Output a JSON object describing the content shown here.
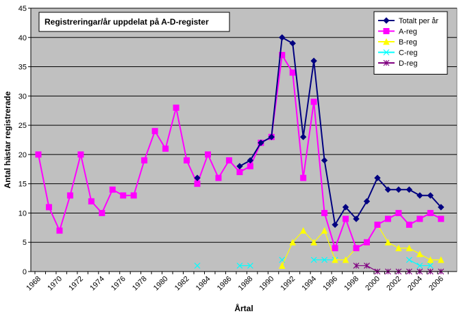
{
  "chart_data": {
    "type": "line",
    "title": "Registreringar/år uppdelat på A-D-register",
    "xlabel": "Årtal",
    "ylabel": "Antal hästar registrerade",
    "ylim": [
      0,
      45
    ],
    "yticks": [
      0,
      5,
      10,
      15,
      20,
      25,
      30,
      35,
      40,
      45
    ],
    "xticks": [
      "1968",
      "1970",
      "1972",
      "1974",
      "1976",
      "1978",
      "1980",
      "1982",
      "1984",
      "1986",
      "1988",
      "1990",
      "1992",
      "1994",
      "1996",
      "1998",
      "2000",
      "2002",
      "2004",
      "2006"
    ],
    "x": [
      1968,
      1969,
      1970,
      1971,
      1972,
      1973,
      1974,
      1975,
      1976,
      1977,
      1978,
      1979,
      1980,
      1981,
      1982,
      1983,
      1984,
      1985,
      1986,
      1987,
      1988,
      1989,
      1990,
      1991,
      1992,
      1993,
      1994,
      1995,
      1996,
      1997,
      1998,
      1999,
      2000,
      2001,
      2002,
      2003,
      2004,
      2005,
      2006,
      2007
    ],
    "grid": "horizontal",
    "legend_position": "top-right",
    "plot_background": "#c0c0c0",
    "series": [
      {
        "name": "Totalt  per år",
        "color": "#000080",
        "marker": "diamond",
        "values": [
          null,
          null,
          null,
          null,
          null,
          null,
          null,
          null,
          null,
          null,
          null,
          null,
          null,
          null,
          null,
          16,
          null,
          null,
          null,
          18,
          19,
          22,
          23,
          40,
          39,
          23,
          36,
          19,
          8,
          11,
          9,
          12,
          16,
          14,
          14,
          14,
          13,
          13,
          11,
          null
        ]
      },
      {
        "name": "A-reg",
        "color": "#ff00ff",
        "marker": "square",
        "values": [
          20,
          11,
          7,
          13,
          20,
          12,
          10,
          14,
          13,
          13,
          19,
          24,
          21,
          28,
          19,
          15,
          20,
          16,
          19,
          17,
          18,
          22,
          23,
          37,
          34,
          16,
          29,
          10,
          4,
          9,
          4,
          5,
          8,
          9,
          10,
          8,
          9,
          10,
          9,
          null
        ]
      },
      {
        "name": "B-reg",
        "color": "#ffff00",
        "marker": "triangle",
        "values": [
          null,
          null,
          null,
          null,
          null,
          null,
          null,
          null,
          null,
          null,
          null,
          null,
          null,
          null,
          null,
          null,
          null,
          null,
          null,
          null,
          null,
          null,
          null,
          1,
          5,
          7,
          5,
          7,
          2,
          2,
          4,
          5,
          8,
          5,
          4,
          4,
          3,
          2,
          2,
          null
        ]
      },
      {
        "name": "C-reg",
        "color": "#00ffff",
        "marker": "x",
        "values": [
          null,
          null,
          null,
          null,
          null,
          null,
          null,
          null,
          null,
          null,
          null,
          null,
          null,
          null,
          null,
          1,
          null,
          null,
          null,
          1,
          1,
          null,
          null,
          2,
          null,
          null,
          2,
          2,
          2,
          null,
          null,
          null,
          null,
          null,
          null,
          2,
          1,
          1,
          null,
          null
        ]
      },
      {
        "name": "D-reg",
        "color": "#800080",
        "marker": "star",
        "values": [
          null,
          null,
          null,
          null,
          null,
          null,
          null,
          null,
          null,
          null,
          null,
          null,
          null,
          null,
          null,
          null,
          null,
          null,
          null,
          null,
          null,
          null,
          null,
          null,
          null,
          null,
          null,
          null,
          null,
          null,
          1,
          1,
          0,
          0,
          0,
          0,
          0,
          0,
          0,
          null
        ]
      }
    ]
  }
}
